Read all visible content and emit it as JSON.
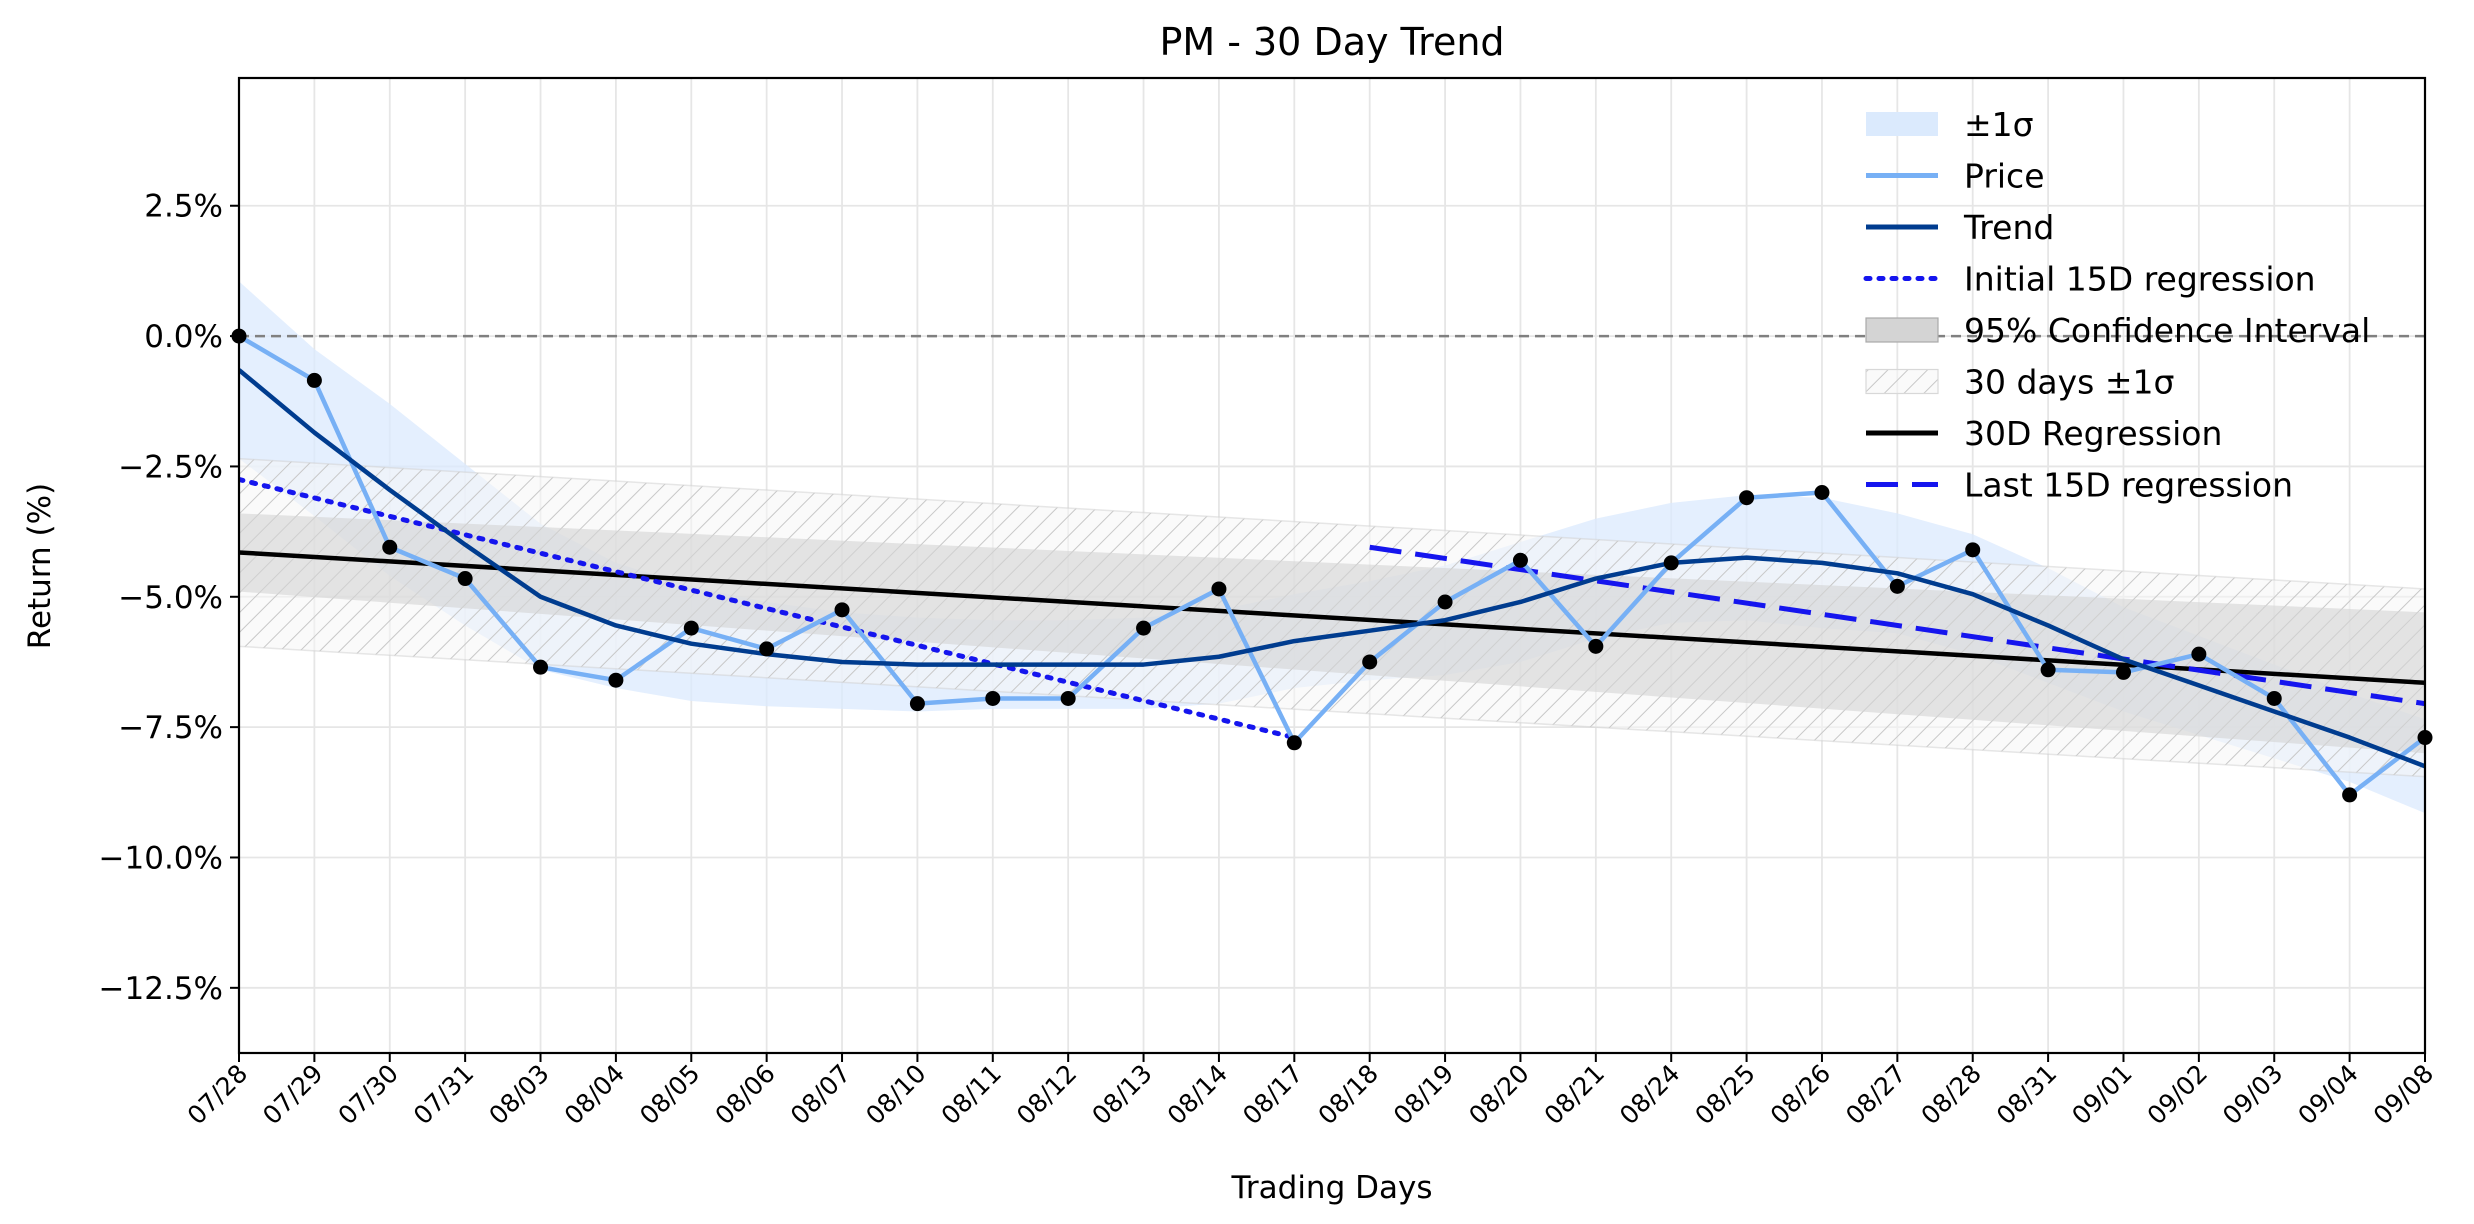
{
  "chart_data": {
    "type": "line",
    "title": "PM - 30 Day Trend",
    "xlabel": "Trading Days",
    "ylabel": "Return (%)",
    "ylim": [
      -13.75,
      4.95
    ],
    "yticks": [
      -12.5,
      -10.0,
      -7.5,
      -5.0,
      -2.5,
      0.0,
      2.5
    ],
    "ytick_labels": [
      "−12.5%",
      "−10.0%",
      "−7.5%",
      "−5.0%",
      "−2.5%",
      "0.0%",
      "2.5%"
    ],
    "categories": [
      "07/28",
      "07/29",
      "07/30",
      "07/31",
      "08/03",
      "08/04",
      "08/05",
      "08/06",
      "08/07",
      "08/10",
      "08/11",
      "08/12",
      "08/13",
      "08/14",
      "08/17",
      "08/18",
      "08/19",
      "08/20",
      "08/21",
      "08/24",
      "08/25",
      "08/26",
      "08/27",
      "08/28",
      "08/31",
      "09/01",
      "09/02",
      "09/03",
      "09/04",
      "09/08"
    ],
    "grid": true,
    "legend_position": "top-right",
    "zero_line": 0.0,
    "series": [
      {
        "name": "Price",
        "color": "#77b0f5",
        "style": "solid",
        "values": [
          0.0,
          -0.85,
          -4.05,
          -4.65,
          -6.35,
          -6.6,
          -5.6,
          -6.0,
          -5.25,
          -7.05,
          -6.95,
          -6.95,
          -5.6,
          -4.85,
          -7.8,
          -6.25,
          -5.1,
          -4.3,
          -5.95,
          -4.35,
          -3.1,
          -3.0,
          -4.8,
          -4.1,
          -6.4,
          -6.45,
          -6.1,
          -6.95,
          -8.8,
          -7.7
        ]
      },
      {
        "name": "Trend",
        "color": "#003c8f",
        "style": "solid",
        "values": [
          -0.65,
          -1.85,
          -2.95,
          -4.0,
          -5.0,
          -5.55,
          -5.9,
          -6.1,
          -6.25,
          -6.3,
          -6.3,
          -6.3,
          -6.3,
          -6.15,
          -5.85,
          -5.65,
          -5.45,
          -5.1,
          -4.65,
          -4.35,
          -4.25,
          -4.35,
          -4.55,
          -4.95,
          -5.55,
          -6.2,
          -6.7,
          -7.2,
          -7.7,
          -8.25
        ]
      },
      {
        "name": "Initial 15D regression",
        "color": "#1515ee",
        "style": "dotted",
        "x_start": 0,
        "x_end": 14,
        "y_start": -2.75,
        "y_end": -7.7
      },
      {
        "name": "30D Regression",
        "color": "#000000",
        "style": "solid",
        "x_start": 0,
        "x_end": 29,
        "y_start": -4.15,
        "y_end": -6.65
      },
      {
        "name": "Last 15D regression",
        "color": "#1515ee",
        "style": "dashed",
        "x_start": 15,
        "x_end": 29,
        "y_start": -4.05,
        "y_end": -7.05
      }
    ],
    "bands": [
      {
        "name": "±1σ",
        "color": "#dbeafd",
        "upper": [
          1.05,
          -0.25,
          -1.3,
          -2.45,
          -3.6,
          -4.35,
          -4.8,
          -5.1,
          -5.3,
          -5.4,
          -5.45,
          -5.45,
          -5.4,
          -5.25,
          -4.95,
          -4.7,
          -4.4,
          -3.95,
          -3.5,
          -3.2,
          -3.05,
          -3.1,
          -3.4,
          -3.8,
          -4.45,
          -5.2,
          -5.75,
          -6.3,
          -6.85,
          -7.35
        ],
        "lower": [
          -2.35,
          -3.45,
          -4.6,
          -5.55,
          -6.4,
          -6.75,
          -7.0,
          -7.1,
          -7.15,
          -7.2,
          -7.15,
          -7.15,
          -7.15,
          -7.05,
          -6.75,
          -6.6,
          -6.5,
          -6.25,
          -5.8,
          -5.5,
          -5.45,
          -5.6,
          -5.7,
          -6.1,
          -6.65,
          -7.2,
          -7.65,
          -8.1,
          -8.55,
          -9.15
        ]
      },
      {
        "name": "95% Confidence Interval",
        "color": "#d4d4d4",
        "x_start": 0,
        "x_end": 29,
        "upper_start": -3.4,
        "upper_end": -5.3,
        "lower_start": -4.9,
        "lower_end": -8.0
      },
      {
        "name": "30 days ±1σ",
        "color": "#cfcfcf",
        "hatched": true,
        "x_start": 0,
        "x_end": 29,
        "upper_start": -2.35,
        "upper_end": -4.85,
        "lower_start": -5.95,
        "lower_end": -8.45
      }
    ],
    "markers": {
      "color": "#000000",
      "series": "Price"
    },
    "legend": [
      "±1σ",
      "Price",
      "Trend",
      "Initial 15D regression",
      "95% Confidence Interval",
      "30 days ±1σ",
      "30D Regression",
      "Last 15D regression"
    ]
  }
}
